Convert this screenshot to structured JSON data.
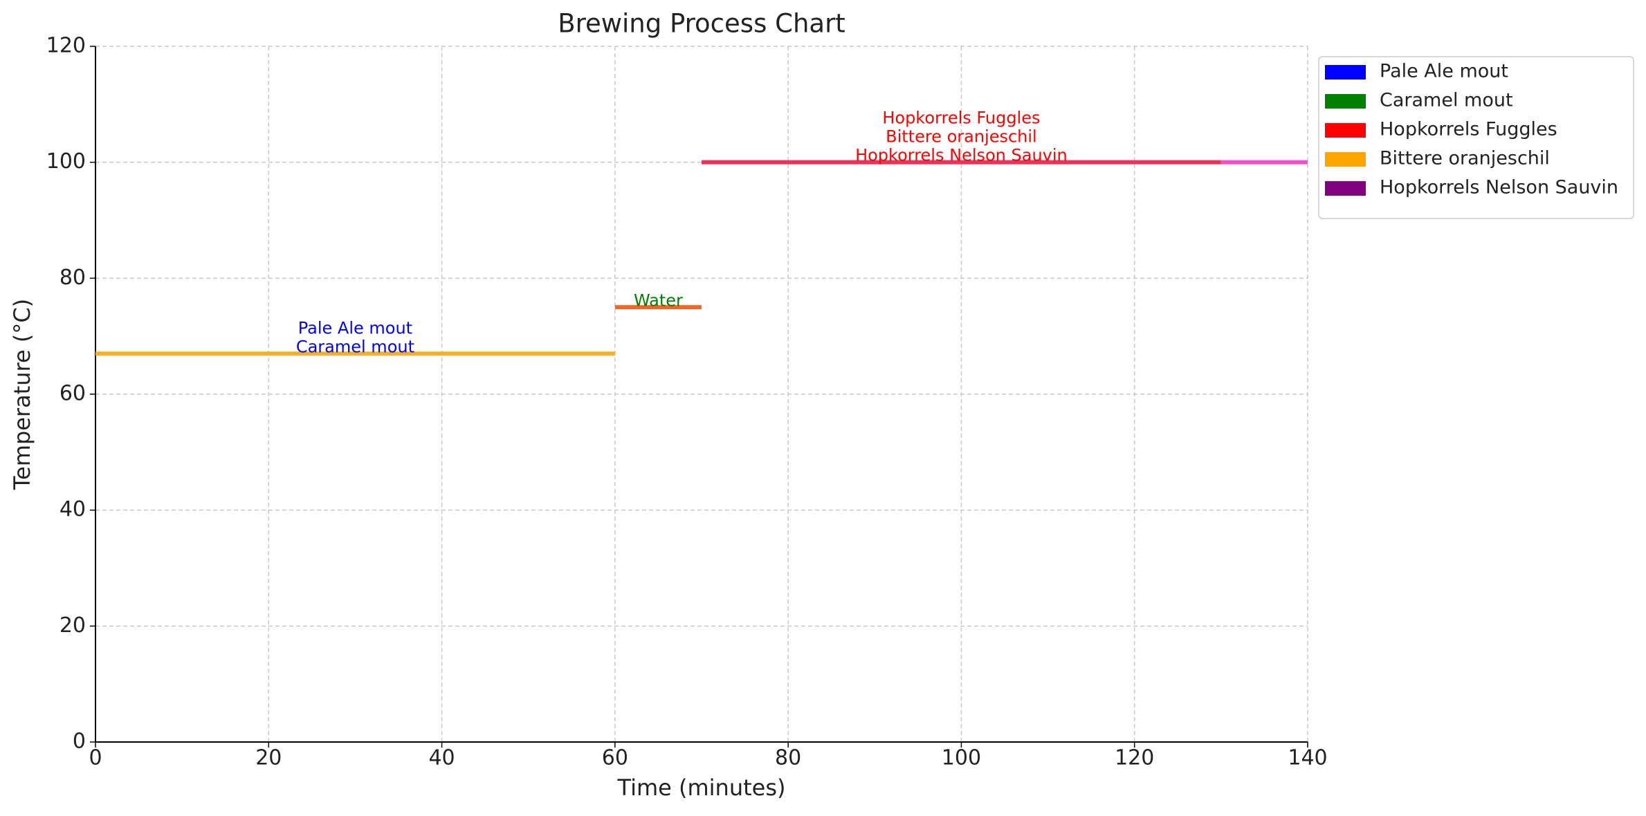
{
  "chart_data": {
    "type": "segments",
    "title": "Brewing Process Chart",
    "x_label": "Time (minutes)",
    "y_label": "Temperature (°C)",
    "xlim": [
      0,
      140
    ],
    "xticks": [
      0,
      20,
      40,
      60,
      80,
      100,
      120,
      140
    ],
    "ylim": [
      0,
      120
    ],
    "yticks": [
      0,
      20,
      40,
      60,
      80,
      100,
      120
    ],
    "grid": true,
    "segments": [
      {
        "x": [
          0,
          60
        ],
        "values": [
          67,
          67
        ],
        "color": "#f2b02a"
      },
      {
        "x": [
          60,
          70
        ],
        "values": [
          75,
          75
        ],
        "color": "#f26522"
      },
      {
        "x": [
          70,
          130
        ],
        "values": [
          100,
          100
        ],
        "color": "#e8335a"
      },
      {
        "x": [
          130,
          140
        ],
        "values": [
          100,
          100
        ],
        "color": "#f050c8"
      }
    ],
    "annotations": [
      {
        "lines": [
          "Pale Ale mout",
          "Caramel mout"
        ],
        "x": 30,
        "y": 67,
        "color": "blue"
      },
      {
        "lines": [
          "Water"
        ],
        "x": 65,
        "y": 75,
        "color": "green"
      },
      {
        "lines": [
          "Hopkorrels Fuggles",
          "Bittere oranjeschil",
          "Hopkorrels Nelson Sauvin"
        ],
        "x": 100,
        "y": 100,
        "color": "red"
      }
    ],
    "legend": {
      "position": "outside-right",
      "items": [
        {
          "name": "Pale Ale mout",
          "color": "blue"
        },
        {
          "name": "Caramel mout",
          "color": "green"
        },
        {
          "name": "Hopkorrels Fuggles",
          "color": "red"
        },
        {
          "name": "Bittere oranjeschil",
          "color": "orange"
        },
        {
          "name": "Hopkorrels Nelson Sauvin",
          "color": "purple"
        }
      ]
    }
  }
}
